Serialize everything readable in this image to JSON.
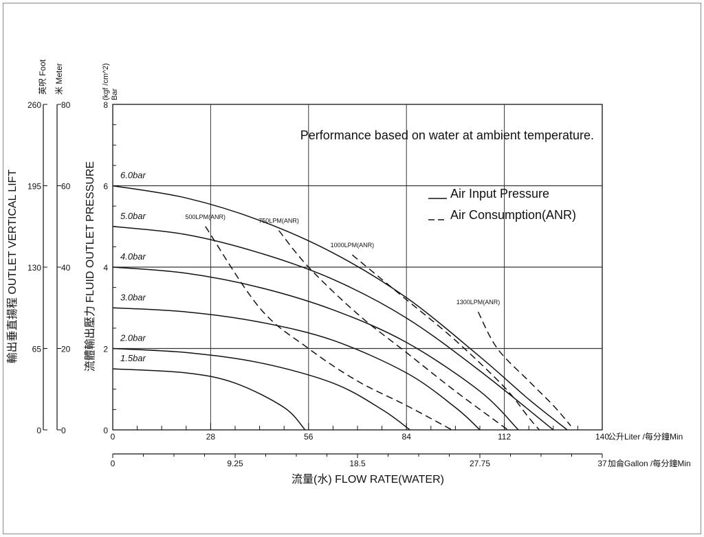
{
  "chart_data": {
    "type": "line",
    "note": "Performance based on water at ambient temperature.",
    "x_axis_liter": {
      "label": "公升Liter /每分鐘Min",
      "ticks": [
        0,
        28,
        56,
        84,
        112,
        140
      ],
      "range": [
        0,
        140
      ]
    },
    "x_axis_gallon": {
      "label": "加侖Gallon /每分鐘Min",
      "ticks": [
        "0",
        "9.25",
        "18.5",
        "27.75",
        "37"
      ]
    },
    "x_title": "流量(水) FLOW RATE(WATER)",
    "y_axis_bar": {
      "unit_top": "Bar",
      "unit_bottom": "(kgf /cm^2)",
      "title": "流體輸出壓力 FLUID OUTLET PRESSURE",
      "ticks": [
        0,
        2,
        4,
        6,
        8
      ],
      "range": [
        0,
        8
      ]
    },
    "y_axis_meter": {
      "unit": "米 Meter",
      "ticks": [
        0,
        20,
        40,
        60,
        80
      ]
    },
    "y_axis_foot": {
      "unit": "英呎 Foot",
      "ticks": [
        0,
        65,
        130,
        195,
        260
      ]
    },
    "lift_title": "輸出垂直揚程 OUTLET VERTICAL LIFT",
    "legend": {
      "solid": "Air Input Pressure",
      "dashed": "Air Consumption(ANR)"
    },
    "series": [
      {
        "name": "6.0bar",
        "style": "solid",
        "points": [
          [
            0,
            6.0
          ],
          [
            21,
            5.7
          ],
          [
            42,
            5.15
          ],
          [
            63,
            4.35
          ],
          [
            84,
            3.25
          ],
          [
            105,
            1.8
          ],
          [
            119,
            0.75
          ],
          [
            130,
            0
          ]
        ]
      },
      {
        "name": "5.0bar",
        "style": "solid",
        "points": [
          [
            0,
            5.0
          ],
          [
            21,
            4.8
          ],
          [
            42,
            4.35
          ],
          [
            63,
            3.7
          ],
          [
            84,
            2.75
          ],
          [
            105,
            1.45
          ],
          [
            126,
            0
          ]
        ]
      },
      {
        "name": "4.0bar",
        "style": "solid",
        "points": [
          [
            0,
            4.0
          ],
          [
            21,
            3.85
          ],
          [
            42,
            3.5
          ],
          [
            63,
            2.95
          ],
          [
            84,
            2.15
          ],
          [
            105,
            0.95
          ],
          [
            116,
            0
          ]
        ]
      },
      {
        "name": "3.0bar",
        "style": "solid",
        "points": [
          [
            0,
            3.0
          ],
          [
            21,
            2.9
          ],
          [
            42,
            2.65
          ],
          [
            63,
            2.2
          ],
          [
            84,
            1.4
          ],
          [
            98,
            0.55
          ],
          [
            105,
            0
          ]
        ]
      },
      {
        "name": "2.0bar",
        "style": "solid",
        "points": [
          [
            0,
            2.0
          ],
          [
            21,
            1.9
          ],
          [
            42,
            1.65
          ],
          [
            63,
            1.15
          ],
          [
            77,
            0.5
          ],
          [
            85,
            0
          ]
        ]
      },
      {
        "name": "1.5bar",
        "style": "solid",
        "points": [
          [
            0,
            1.5
          ],
          [
            21,
            1.4
          ],
          [
            35,
            1.15
          ],
          [
            49,
            0.55
          ],
          [
            55,
            0
          ]
        ]
      },
      {
        "name": "500LPM(ANR)",
        "style": "dashed",
        "points": [
          [
            26.5,
            5.0
          ],
          [
            42,
            3.0
          ],
          [
            56,
            2.0
          ],
          [
            70,
            1.2
          ],
          [
            84,
            0.6
          ],
          [
            97,
            0
          ]
        ]
      },
      {
        "name": "750LPM(ANR)",
        "style": "dashed",
        "points": [
          [
            47.5,
            4.9
          ],
          [
            56,
            4.0
          ],
          [
            70,
            2.85
          ],
          [
            84,
            1.9
          ],
          [
            98,
            0.95
          ],
          [
            113,
            0
          ]
        ]
      },
      {
        "name": "1000LPM(ANR)",
        "style": "dashed",
        "points": [
          [
            68.5,
            4.3
          ],
          [
            84,
            3.2
          ],
          [
            98,
            2.2
          ],
          [
            112,
            1.05
          ],
          [
            119,
            0.3
          ],
          [
            122,
            0
          ]
        ]
      },
      {
        "name": "1300LPM(ANR)",
        "style": "dashed",
        "points": [
          [
            104.5,
            2.9
          ],
          [
            110,
            2.0
          ],
          [
            119,
            1.2
          ],
          [
            126,
            0.6
          ],
          [
            131,
            0.1
          ]
        ]
      }
    ]
  }
}
